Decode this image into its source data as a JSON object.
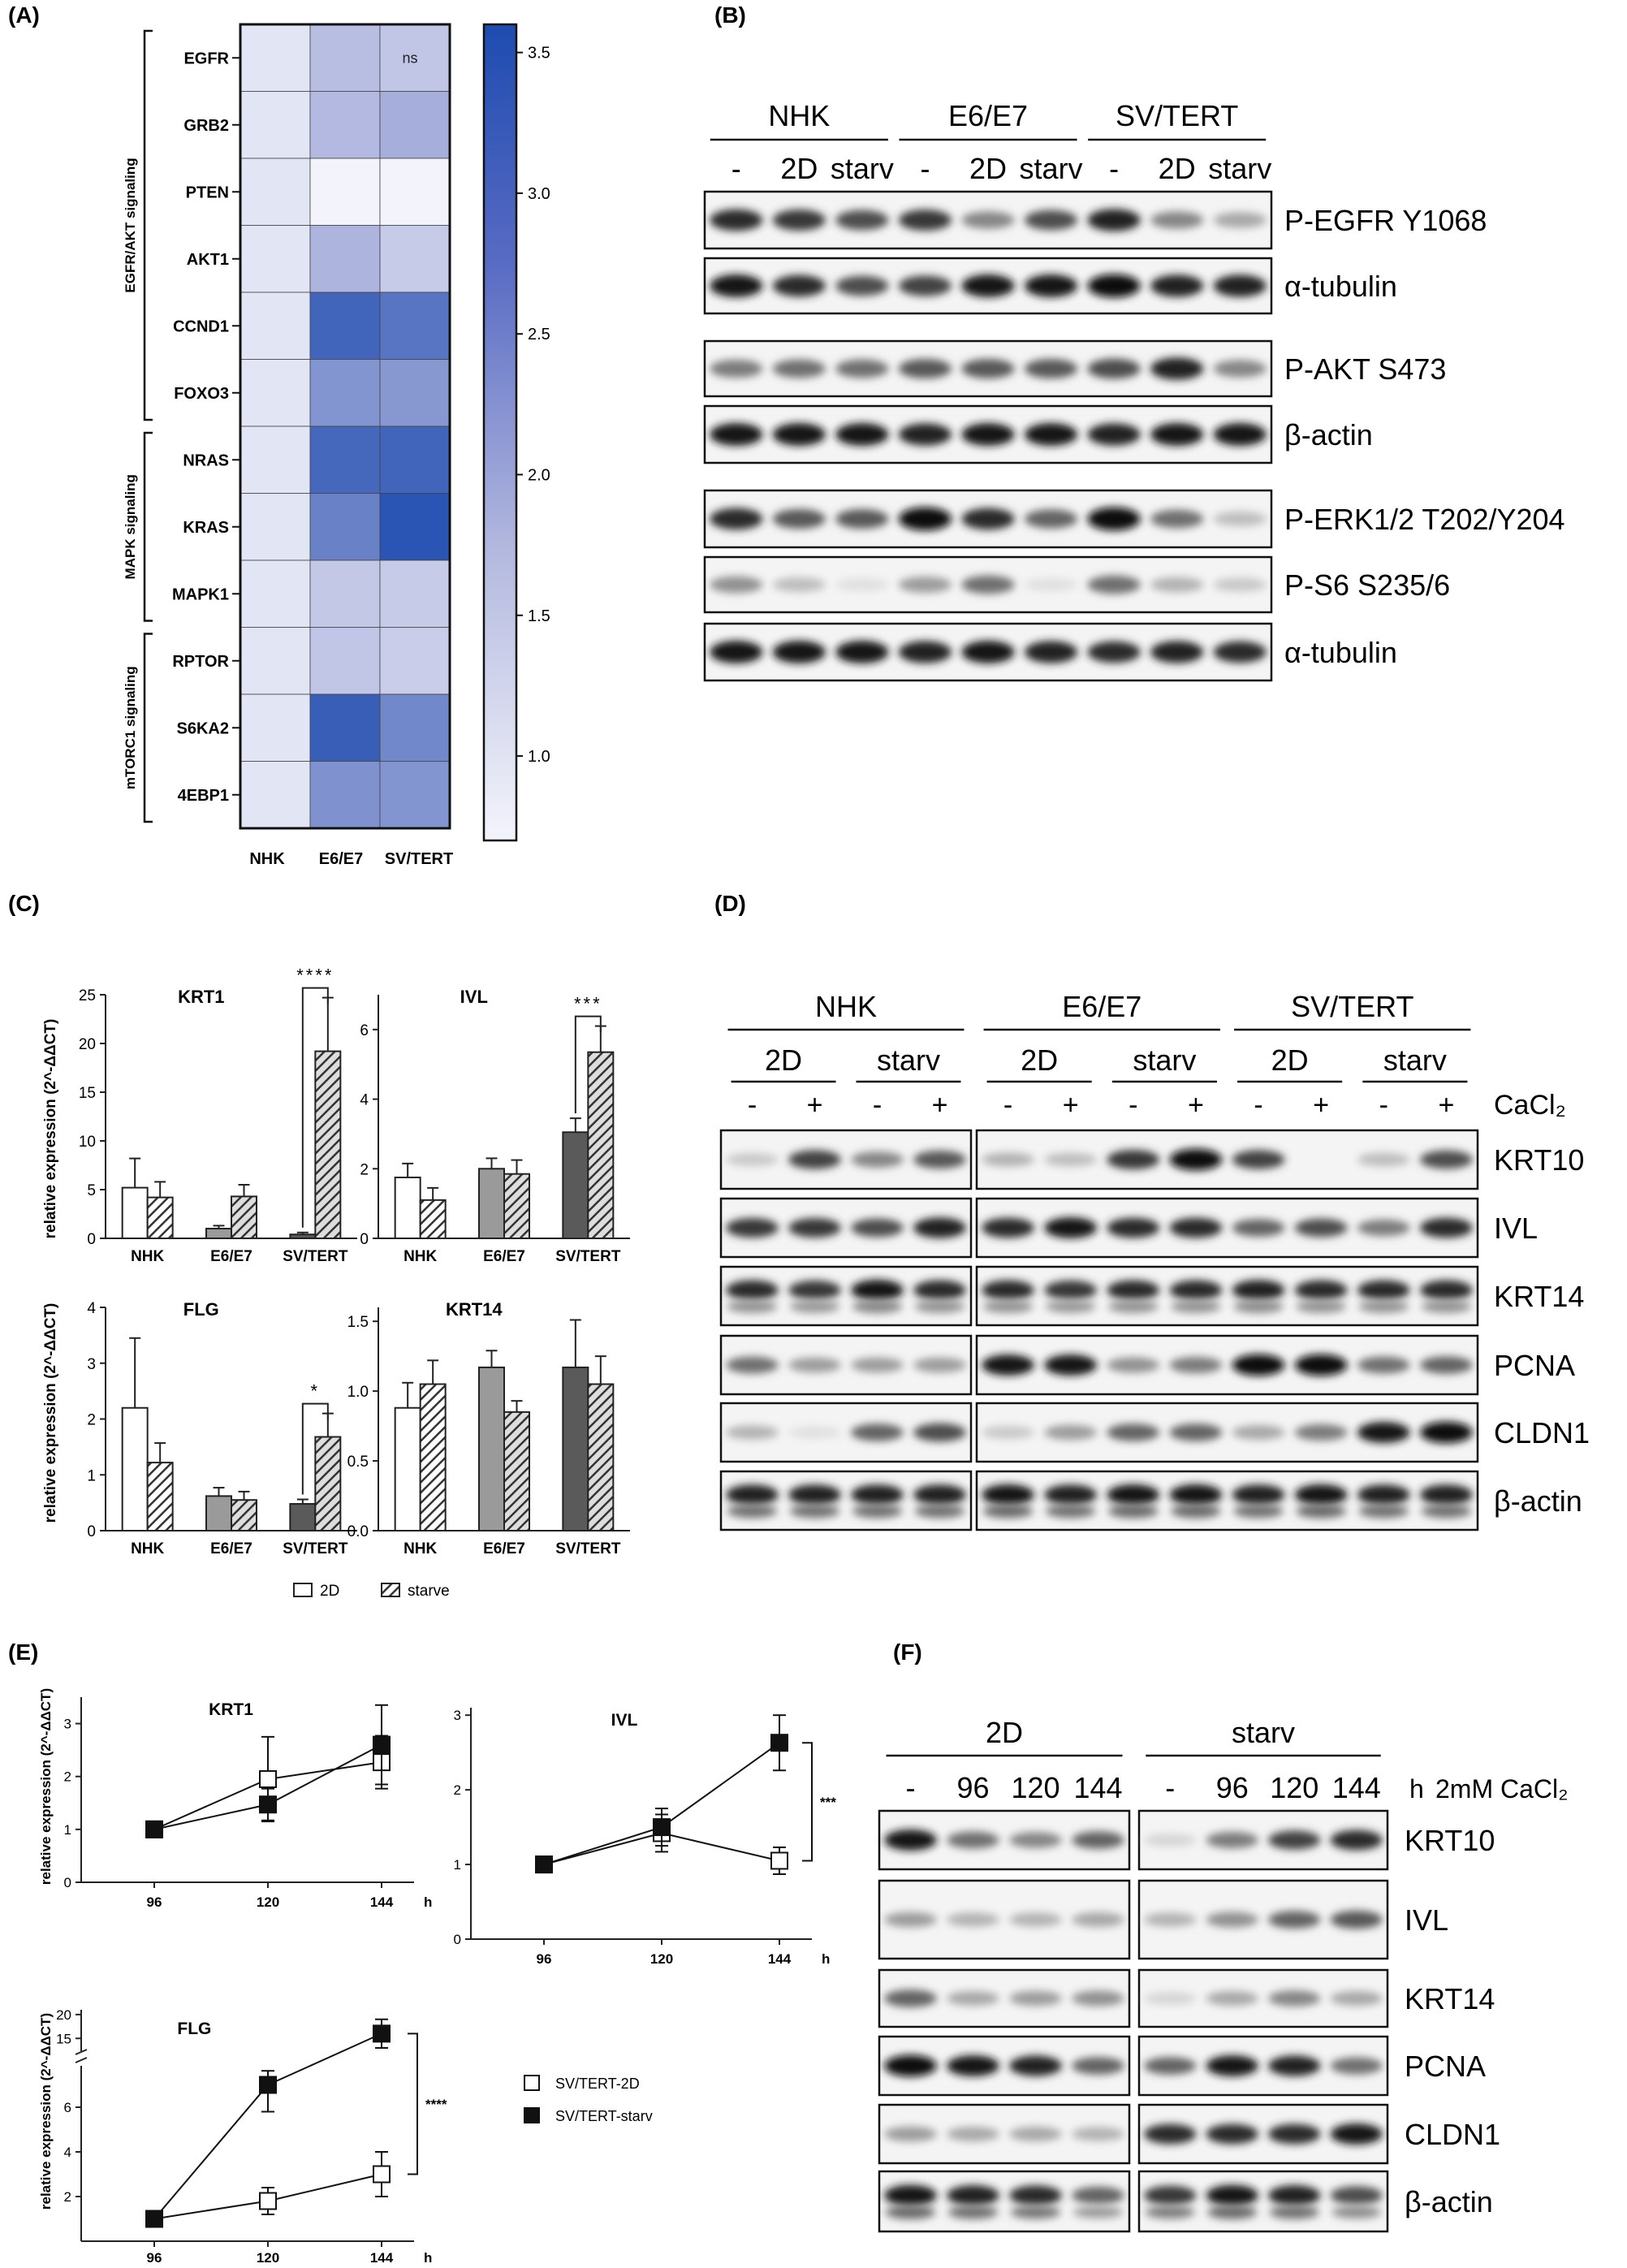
{
  "panels": {
    "A": {
      "label": "(A)",
      "genes": [
        "EGFR",
        "GRB2",
        "PTEN",
        "AKT1",
        "CCND1",
        "FOXO3",
        "NRAS",
        "KRAS",
        "MAPK1",
        "RPTOR",
        "S6KA2",
        "4EBP1"
      ],
      "columns": [
        "NHK",
        "E6/E7",
        "SV/TERT"
      ],
      "values": [
        [
          1,
          1.75,
          1.6
        ],
        [
          1,
          1.85,
          2.05
        ],
        [
          1,
          0.7,
          0.7
        ],
        [
          1,
          1.95,
          1.5
        ],
        [
          1,
          3.2,
          2.95
        ],
        [
          1,
          2.45,
          2.4
        ],
        [
          1,
          3.15,
          3.2
        ],
        [
          1,
          2.75,
          3.45
        ],
        [
          1,
          1.55,
          1.5
        ],
        [
          1,
          1.6,
          1.45
        ],
        [
          1,
          3.3,
          2.65
        ],
        [
          1,
          2.5,
          2.45
        ]
      ],
      "ns_label": "ns",
      "groups": [
        "EGFR/AKT signaling",
        "MAPK signaling",
        "mTORC1 signaling"
      ],
      "scale_ticks": [
        "3.5",
        "3.0",
        "2.5",
        "2.0",
        "1.5",
        "1.0"
      ],
      "colors": {
        "low": "#f0f1fa",
        "high": "#1e4bb0"
      }
    },
    "B": {
      "label": "(B)",
      "groups": [
        "NHK",
        "E6/E7",
        "SV/TERT"
      ],
      "lanes": [
        "-",
        "2D",
        "starv",
        "-",
        "2D",
        "starv",
        "-",
        "2D",
        "starv"
      ],
      "blots": [
        "P-EGFR Y1068",
        "α-tubulin",
        "P-AKT S473",
        "β-actin",
        "P-ERK1/2 T202/Y204",
        "P-S6 S235/6",
        "α-tubulin"
      ]
    },
    "C": {
      "label": "(C)",
      "ylabel": "relative expression (2^-ΔΔCT)",
      "legend": [
        "2D",
        "starve"
      ],
      "charts": [
        {
          "title": "KRT1",
          "sig": "****",
          "ticks": [
            "0",
            "5",
            "10",
            "15",
            "20",
            "25"
          ],
          "ymax": 25
        },
        {
          "title": "IVL",
          "sig": "***",
          "ticks": [
            "0",
            "2",
            "4",
            "6"
          ],
          "ymax": 7
        },
        {
          "title": "FLG",
          "sig": "*",
          "ticks": [
            "0",
            "1",
            "2",
            "3",
            "4"
          ],
          "ymax": 4
        },
        {
          "title": "KRT14",
          "sig": "",
          "ticks": [
            "0.0",
            "0.5",
            "1.0",
            "1.5"
          ],
          "ymax": 1.6
        }
      ],
      "categories": [
        "NHK",
        "E6/E7",
        "SV/TERT"
      ]
    },
    "D": {
      "label": "(D)",
      "groups": [
        "NHK",
        "E6/E7",
        "SV/TERT"
      ],
      "conditions": [
        "2D",
        "starv",
        "2D",
        "starv",
        "2D",
        "starv"
      ],
      "cacl_label": "CaCl₂",
      "signs": [
        "-",
        "+",
        "-",
        "+",
        "-",
        "+",
        "-",
        "+",
        "-",
        "+",
        "-",
        "+"
      ],
      "blots": [
        "KRT10",
        "IVL",
        "KRT14",
        "PCNA",
        "CLDN1",
        "β-actin"
      ]
    },
    "E": {
      "label": "(E)",
      "ylabel": "relative expression (2^-ΔΔCT)",
      "xticks": [
        "96",
        "120",
        "144"
      ],
      "xunit": "h",
      "legend": [
        "SV/TERT-2D",
        "SV/TERT-starv"
      ],
      "plots": [
        {
          "title": "KRT1",
          "sig": ""
        },
        {
          "title": "IVL",
          "sig": "***"
        },
        {
          "title": "FLG",
          "sig": "****"
        }
      ]
    },
    "F": {
      "label": "(F)",
      "groups": [
        "2D",
        "starv"
      ],
      "lanes": [
        "-",
        "96",
        "120",
        "144",
        "-",
        "96",
        "120",
        "144"
      ],
      "h_label": "h",
      "cacl_label": "2mM CaCl₂",
      "blots": [
        "KRT10",
        "IVL",
        "KRT14",
        "PCNA",
        "CLDN1",
        "β-actin"
      ]
    }
  },
  "chart_data": [
    {
      "type": "heatmap",
      "rows": [
        "EGFR",
        "GRB2",
        "PTEN",
        "AKT1",
        "CCND1",
        "FOXO3",
        "NRAS",
        "KRAS",
        "MAPK1",
        "RPTOR",
        "S6KA2",
        "4EBP1"
      ],
      "columns": [
        "NHK",
        "E6/E7",
        "SV/TERT"
      ],
      "values": [
        [
          1,
          1.75,
          1.6
        ],
        [
          1,
          1.85,
          2.05
        ],
        [
          1,
          0.7,
          0.7
        ],
        [
          1,
          1.95,
          1.5
        ],
        [
          1,
          3.2,
          2.95
        ],
        [
          1,
          2.45,
          2.4
        ],
        [
          1,
          3.15,
          3.2
        ],
        [
          1,
          2.75,
          3.45
        ],
        [
          1,
          1.55,
          1.5
        ],
        [
          1,
          1.6,
          1.45
        ],
        [
          1,
          3.3,
          2.65
        ],
        [
          1,
          2.5,
          2.45
        ]
      ],
      "colorbar_range": [
        0.7,
        3.6
      ]
    },
    {
      "type": "bar",
      "title": "KRT1",
      "categories": [
        "NHK",
        "E6/E7",
        "SV/TERT"
      ],
      "series": [
        {
          "name": "2D",
          "values": [
            5.2,
            1.0,
            0.4
          ],
          "errors": [
            3.0,
            0.3,
            0.2
          ]
        },
        {
          "name": "starve",
          "values": [
            4.2,
            4.3,
            19.2
          ],
          "errors": [
            1.6,
            1.2,
            5.5
          ]
        }
      ],
      "ylim": [
        0,
        25
      ],
      "ylabel": "relative expression (2^-ΔΔCT)"
    },
    {
      "type": "bar",
      "title": "IVL",
      "categories": [
        "NHK",
        "E6/E7",
        "SV/TERT"
      ],
      "series": [
        {
          "name": "2D",
          "values": [
            1.75,
            2.0,
            3.05
          ],
          "errors": [
            0.4,
            0.3,
            0.4
          ]
        },
        {
          "name": "starve",
          "values": [
            1.1,
            1.85,
            5.35
          ],
          "errors": [
            0.35,
            0.4,
            0.75
          ]
        }
      ],
      "ylim": [
        0,
        7
      ]
    },
    {
      "type": "bar",
      "title": "FLG",
      "categories": [
        "NHK",
        "E6/E7",
        "SV/TERT"
      ],
      "series": [
        {
          "name": "2D",
          "values": [
            2.2,
            0.62,
            0.48
          ],
          "errors": [
            1.25,
            0.15,
            0.08
          ]
        },
        {
          "name": "starve",
          "values": [
            1.22,
            0.55,
            1.68
          ],
          "errors": [
            0.35,
            0.15,
            0.42
          ]
        }
      ],
      "ylim": [
        0,
        4
      ],
      "ylabel": "relative expression (2^-ΔΔCT)"
    },
    {
      "type": "bar",
      "title": "KRT14",
      "categories": [
        "NHK",
        "E6/E7",
        "SV/TERT"
      ],
      "series": [
        {
          "name": "2D",
          "values": [
            0.88,
            1.17,
            1.17
          ],
          "errors": [
            0.18,
            0.12,
            0.34
          ]
        },
        {
          "name": "starve",
          "values": [
            1.05,
            0.85,
            1.05
          ],
          "errors": [
            0.17,
            0.08,
            0.2
          ]
        }
      ],
      "ylim": [
        0,
        1.6
      ]
    },
    {
      "type": "line",
      "title": "KRT1",
      "x": [
        96,
        120,
        144
      ],
      "series": [
        {
          "name": "SV/TERT-2D",
          "values": [
            1.0,
            1.95,
            2.27
          ],
          "errors": [
            0,
            0.8,
            0.5
          ]
        },
        {
          "name": "SV/TERT-starv",
          "values": [
            1.0,
            1.47,
            2.6
          ],
          "errors": [
            0,
            0.3,
            0.75
          ]
        }
      ],
      "ylim": [
        0,
        3.5
      ]
    },
    {
      "type": "line",
      "title": "IVL",
      "x": [
        96,
        120,
        144
      ],
      "series": [
        {
          "name": "SV/TERT-2D",
          "values": [
            1.0,
            1.42,
            1.05
          ],
          "errors": [
            0,
            0.25,
            0.18
          ]
        },
        {
          "name": "SV/TERT-starv",
          "values": [
            1.0,
            1.5,
            2.63
          ],
          "errors": [
            0,
            0.25,
            0.37
          ]
        }
      ],
      "ylim": [
        0,
        3
      ]
    },
    {
      "type": "line",
      "title": "FLG",
      "x": [
        96,
        120,
        144
      ],
      "series": [
        {
          "name": "SV/TERT-2D",
          "values": [
            1.0,
            1.8,
            3.0
          ],
          "errors": [
            0,
            0.6,
            1.0
          ]
        },
        {
          "name": "SV/TERT-starv",
          "values": [
            1.0,
            7.0,
            16.0
          ],
          "errors": [
            0,
            1.2,
            3.0
          ]
        }
      ],
      "yticks": [
        "2",
        "4",
        "6",
        "15",
        "20"
      ]
    }
  ]
}
